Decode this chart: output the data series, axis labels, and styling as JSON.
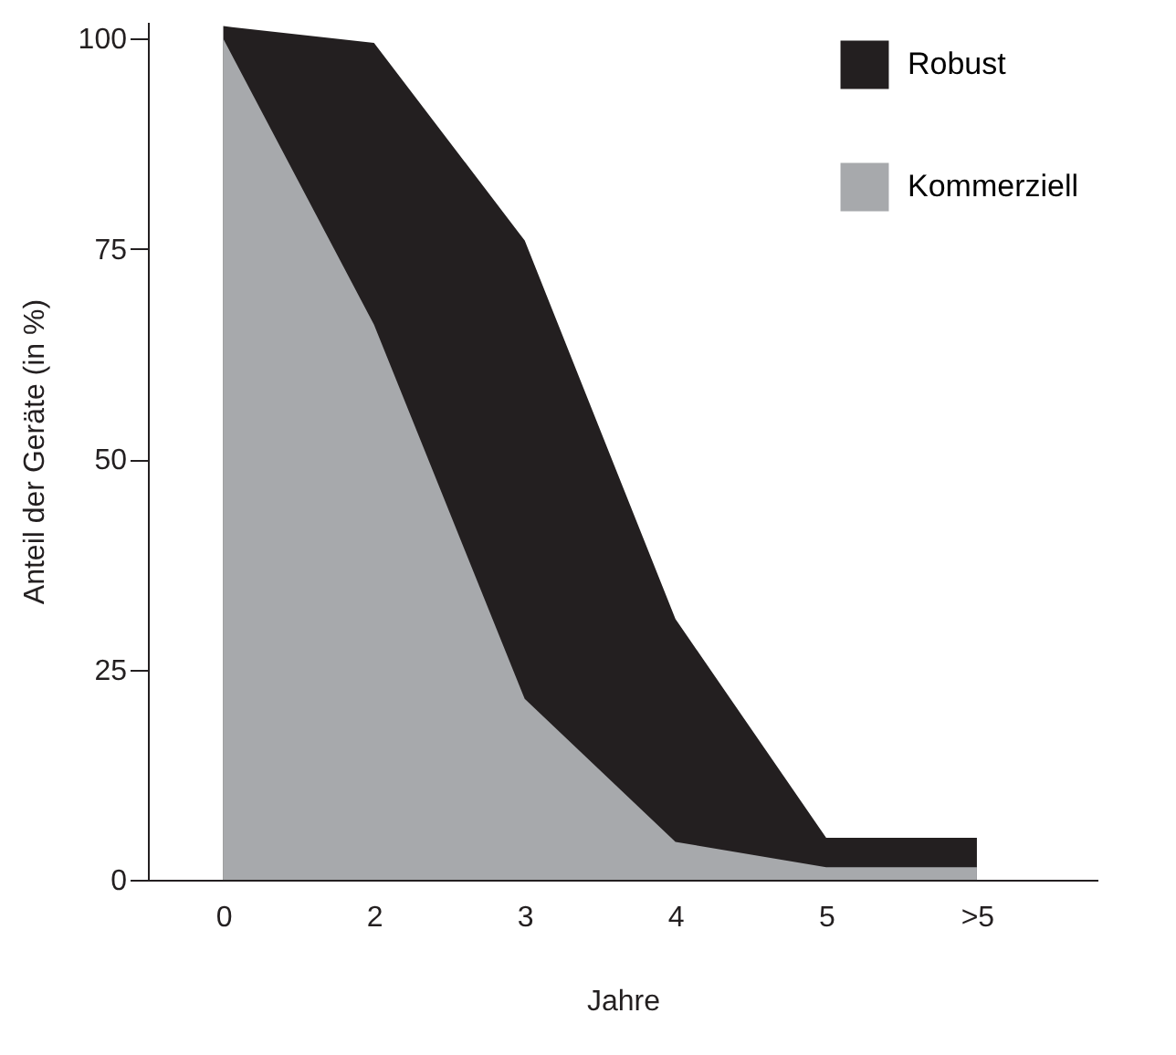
{
  "chart_data": {
    "type": "area",
    "xlabel": "Jahre",
    "ylabel": "Anteil der Geräte (in %)",
    "categories": [
      "0",
      "2",
      "3",
      "4",
      "5",
      ">5"
    ],
    "series": [
      {
        "name": "Robust",
        "color": "#231f20",
        "values": [
          101.5,
          99.5,
          76,
          31,
          5,
          5
        ]
      },
      {
        "name": "Kommerziell",
        "color": "#a7a9ac",
        "values": [
          100,
          66,
          21.5,
          4.5,
          1.5,
          1.5
        ]
      }
    ],
    "ylim": [
      0,
      102
    ],
    "yticks": [
      0,
      25,
      50,
      75,
      100
    ],
    "grid": false,
    "legend": "top right"
  }
}
